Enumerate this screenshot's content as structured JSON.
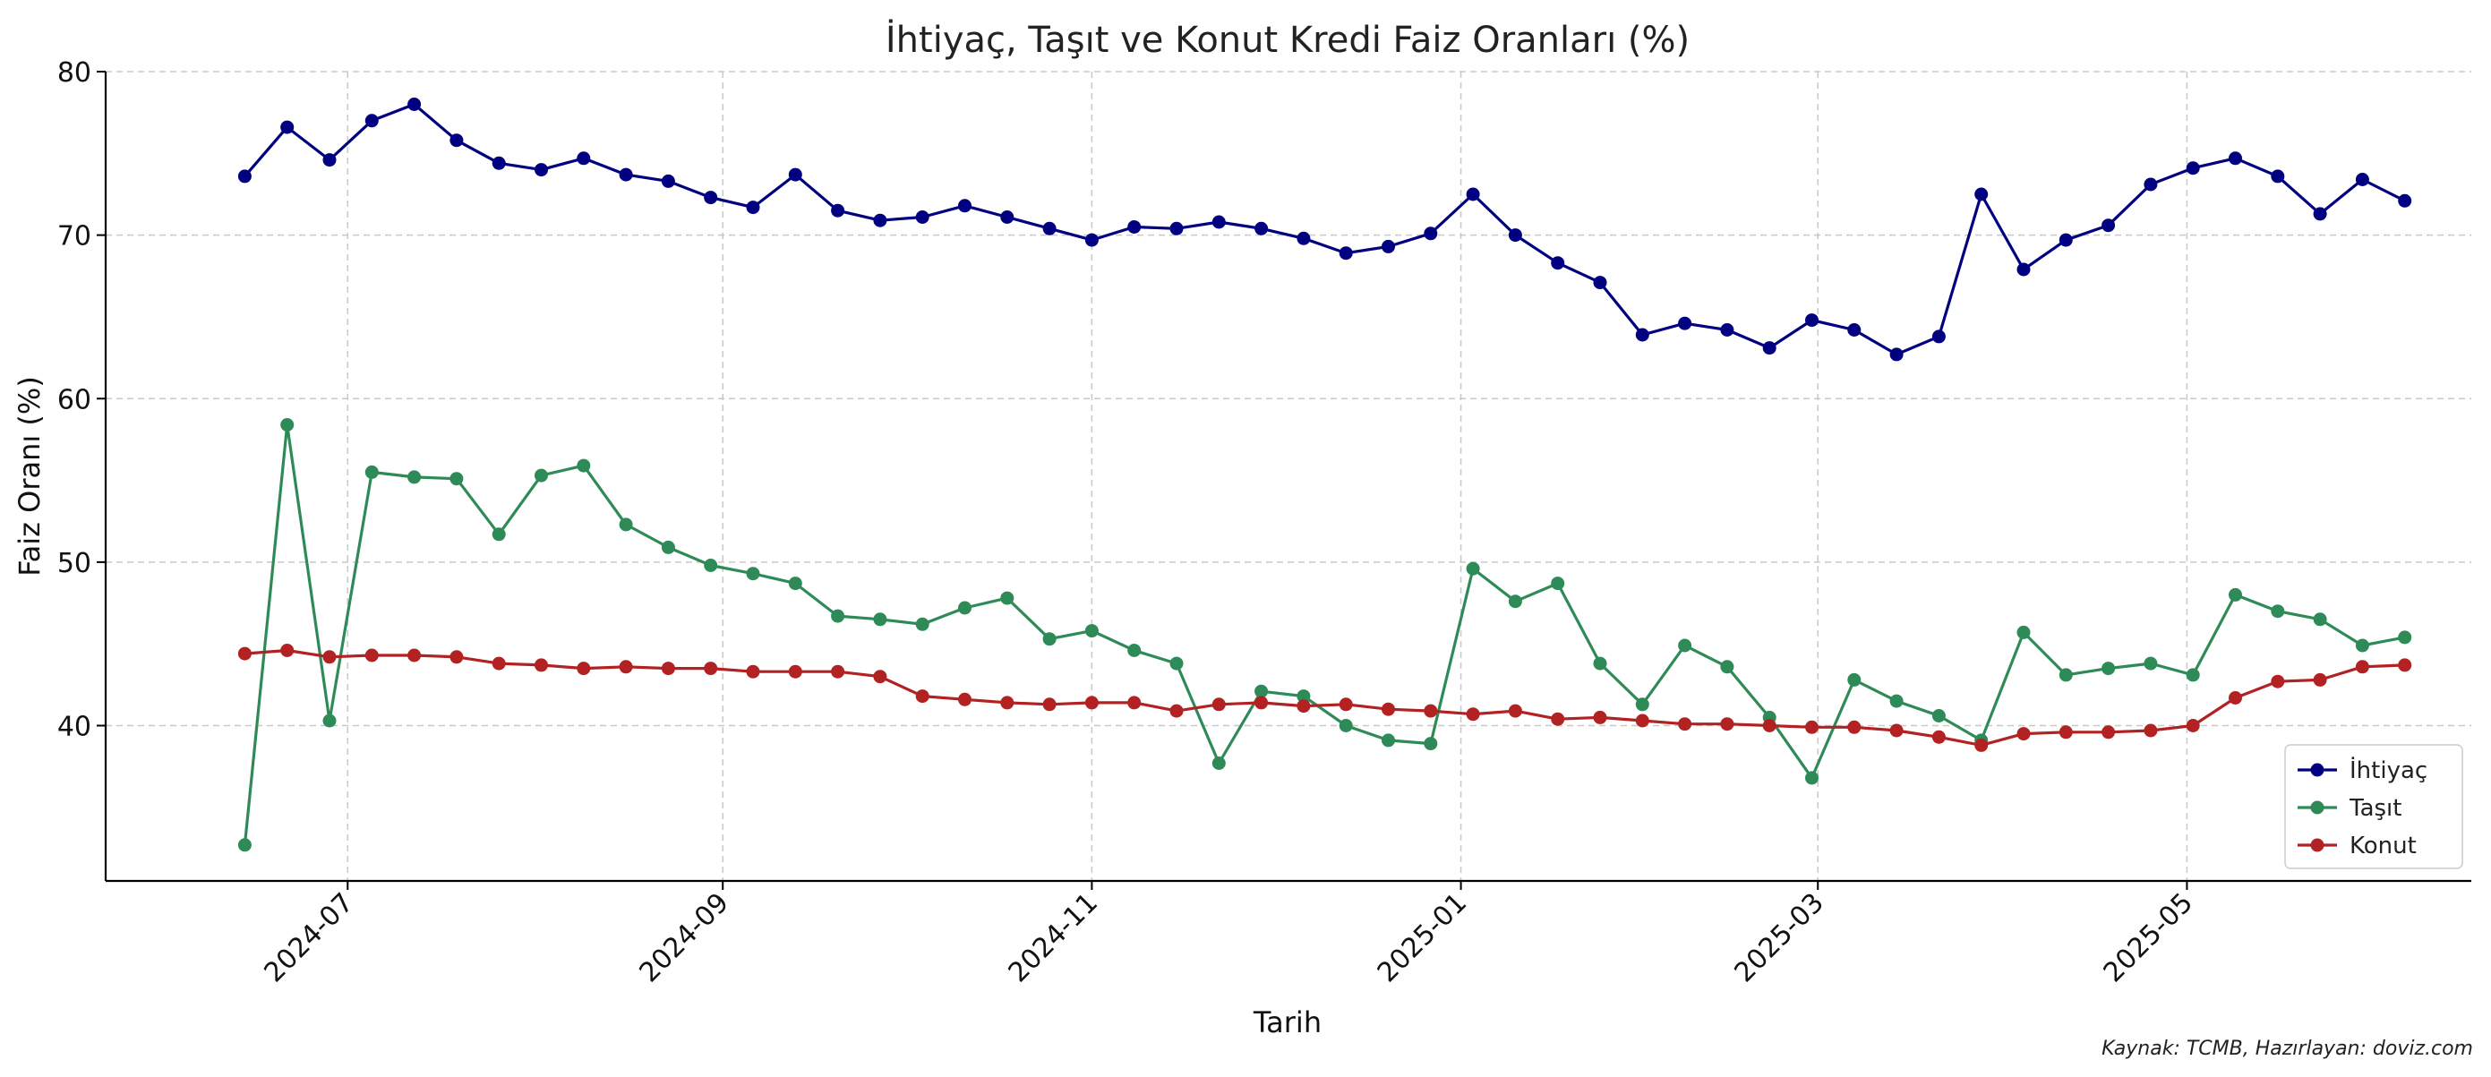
{
  "chart_data": {
    "type": "line",
    "title": "İhtiyaç, Taşıt ve Konut Kredi Faiz Oranları (%)",
    "xlabel": "Tarih",
    "ylabel": "Faiz Oranı (%)",
    "source": "Kaynak: TCMB, Hazırlayan: doviz.com",
    "ylim": [
      30.5,
      80
    ],
    "xlim": [
      "2024-05-22",
      "2025-06-17"
    ],
    "y_ticks": [
      40,
      50,
      60,
      70,
      80
    ],
    "x_ticks": [
      {
        "date": "2024-07-01",
        "label": "2024-07"
      },
      {
        "date": "2024-09-01",
        "label": "2024-09"
      },
      {
        "date": "2024-11-01",
        "label": "2024-11"
      },
      {
        "date": "2025-01-01",
        "label": "2025-01"
      },
      {
        "date": "2025-03-01",
        "label": "2025-03"
      },
      {
        "date": "2025-05-01",
        "label": "2025-05"
      }
    ],
    "grid": true,
    "legend_position": "bottom-right",
    "x": [
      "2024-06-14",
      "2024-06-21",
      "2024-06-28",
      "2024-07-05",
      "2024-07-12",
      "2024-07-19",
      "2024-07-26",
      "2024-08-02",
      "2024-08-09",
      "2024-08-16",
      "2024-08-23",
      "2024-08-30",
      "2024-09-06",
      "2024-09-13",
      "2024-09-20",
      "2024-09-27",
      "2024-10-04",
      "2024-10-11",
      "2024-10-18",
      "2024-10-25",
      "2024-11-01",
      "2024-11-08",
      "2024-11-15",
      "2024-11-22",
      "2024-11-29",
      "2024-12-06",
      "2024-12-13",
      "2024-12-20",
      "2024-12-27",
      "2025-01-03",
      "2025-01-10",
      "2025-01-17",
      "2025-01-24",
      "2025-01-31",
      "2025-02-07",
      "2025-02-14",
      "2025-02-21",
      "2025-02-28",
      "2025-03-07",
      "2025-03-14",
      "2025-03-21",
      "2025-03-28",
      "2025-04-04",
      "2025-04-11",
      "2025-04-18",
      "2025-04-25",
      "2025-05-02",
      "2025-05-09",
      "2025-05-16",
      "2025-05-23",
      "2025-05-30",
      "2025-06-06"
    ],
    "series": [
      {
        "name": "İhtiyaç",
        "color": "#000080",
        "values": [
          73.6,
          76.6,
          74.6,
          77.0,
          78.0,
          75.8,
          74.4,
          74.0,
          74.7,
          73.7,
          73.3,
          72.3,
          71.7,
          73.7,
          71.5,
          70.9,
          71.1,
          71.8,
          71.1,
          70.4,
          69.7,
          70.5,
          70.4,
          70.8,
          70.4,
          69.8,
          68.9,
          69.3,
          70.1,
          72.5,
          70.0,
          68.3,
          67.1,
          63.9,
          64.6,
          64.2,
          63.1,
          64.8,
          64.2,
          62.7,
          63.8,
          72.5,
          67.9,
          69.7,
          70.6,
          73.1,
          74.1,
          74.7,
          73.6,
          71.3,
          73.4,
          72.1
        ]
      },
      {
        "name": "Taşıt",
        "color": "#2e8b57",
        "values": [
          32.7,
          58.4,
          40.3,
          55.5,
          55.2,
          55.1,
          51.7,
          55.3,
          55.9,
          52.3,
          50.9,
          49.8,
          49.3,
          48.7,
          46.7,
          46.5,
          46.2,
          47.2,
          47.8,
          45.3,
          45.8,
          44.6,
          43.8,
          37.7,
          42.1,
          41.8,
          40.0,
          39.1,
          38.9,
          49.6,
          47.6,
          48.7,
          43.8,
          41.3,
          44.9,
          43.6,
          40.5,
          36.8,
          42.8,
          41.5,
          40.6,
          39.1,
          45.7,
          43.1,
          43.5,
          43.8,
          43.1,
          48.0,
          47.0,
          46.5,
          44.9,
          45.4
        ]
      },
      {
        "name": "Konut",
        "color": "#b22222",
        "values": [
          44.4,
          44.6,
          44.2,
          44.3,
          44.3,
          44.2,
          43.8,
          43.7,
          43.5,
          43.6,
          43.5,
          43.5,
          43.3,
          43.3,
          43.3,
          43.0,
          41.8,
          41.6,
          41.4,
          41.3,
          41.4,
          41.4,
          40.9,
          41.3,
          41.4,
          41.2,
          41.3,
          41.0,
          40.9,
          40.7,
          40.9,
          40.4,
          40.5,
          40.3,
          40.1,
          40.1,
          40.0,
          39.9,
          39.9,
          39.7,
          39.3,
          38.8,
          39.5,
          39.6,
          39.6,
          39.7,
          40.0,
          41.7,
          42.7,
          42.8,
          43.6,
          43.7
        ]
      }
    ]
  }
}
